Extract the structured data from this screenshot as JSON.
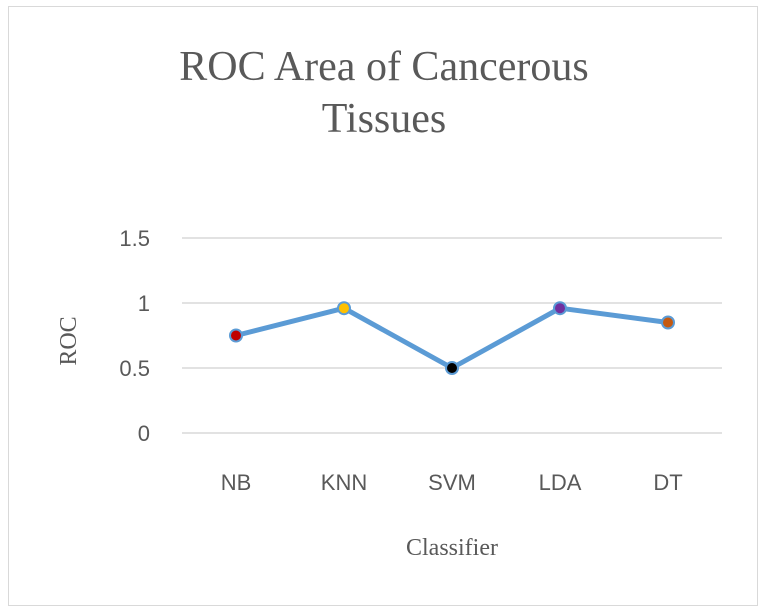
{
  "chart_data": {
    "type": "line",
    "title_lines": [
      "ROC Area of Cancerous",
      "Tissues"
    ],
    "xlabel": "Classifier",
    "ylabel": "ROC",
    "categories": [
      "NB",
      "KNN",
      "SVM",
      "LDA",
      "DT"
    ],
    "y_ticks": [
      "0",
      "0.5",
      "1",
      "1.5"
    ],
    "ylim": [
      0,
      1.5
    ],
    "grid": true,
    "legend": "none",
    "series": [
      {
        "values": [
          0.75,
          0.96,
          0.5,
          0.96,
          0.85
        ],
        "line_color": "#5b9bd5",
        "marker_colors": [
          "#c00000",
          "#ffc000",
          "#000000",
          "#7030a0",
          "#c55a11"
        ]
      }
    ]
  }
}
